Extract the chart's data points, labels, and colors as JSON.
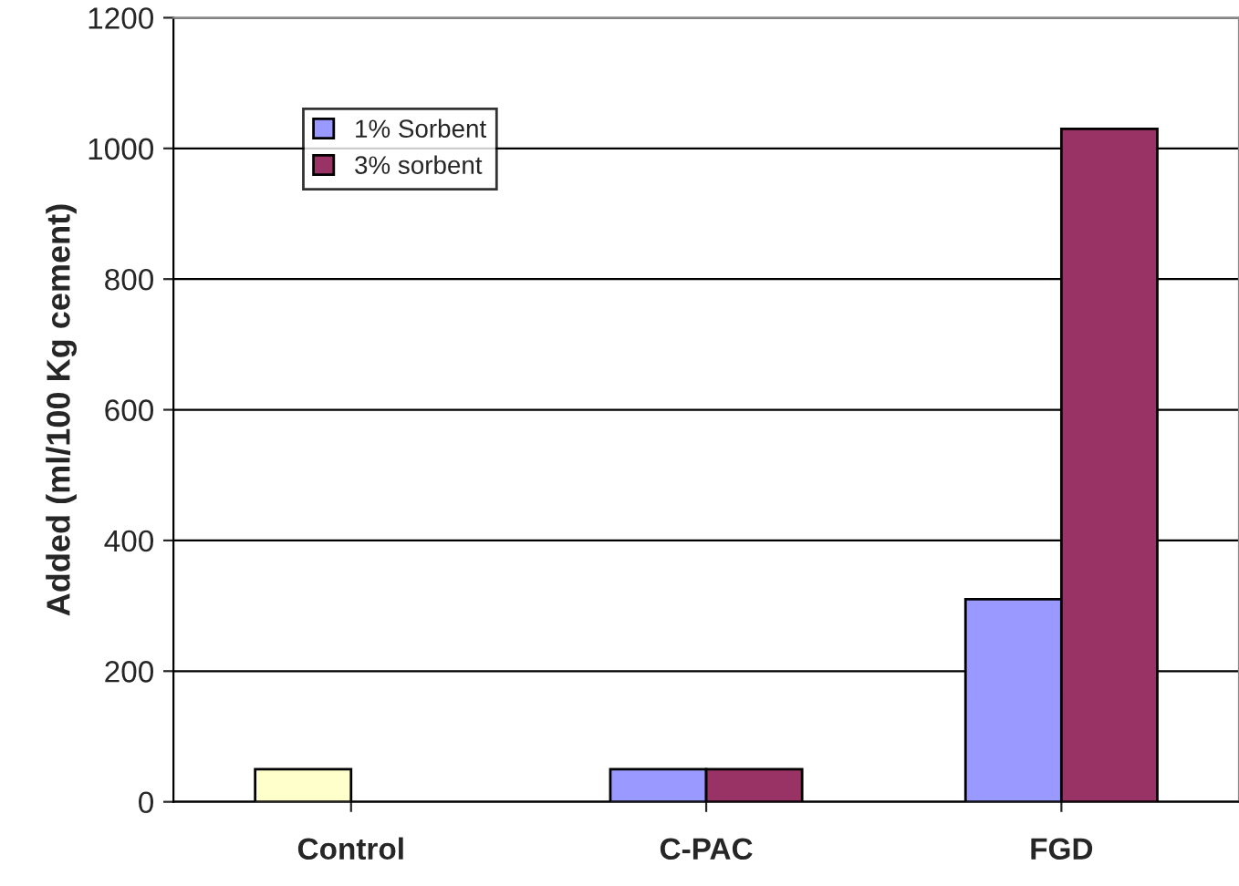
{
  "chart_data": {
    "type": "bar",
    "ylabel": "Added (ml/100 Kg cement)",
    "categories": [
      "Control",
      "C-PAC",
      "FGD"
    ],
    "series": [
      {
        "name": "1% Sorbent",
        "color": "#9999ff",
        "colors": [
          "#ffffcc",
          "#9999ff",
          "#9999ff"
        ],
        "values": [
          50,
          50,
          310
        ]
      },
      {
        "name": "3% sorbent",
        "color": "#993366",
        "values": [
          null,
          50,
          1030
        ]
      }
    ],
    "ylim": [
      0,
      1200
    ],
    "yticks": [
      0,
      200,
      400,
      600,
      800,
      1000,
      1200
    ],
    "grid": "y",
    "legend": "top left"
  }
}
